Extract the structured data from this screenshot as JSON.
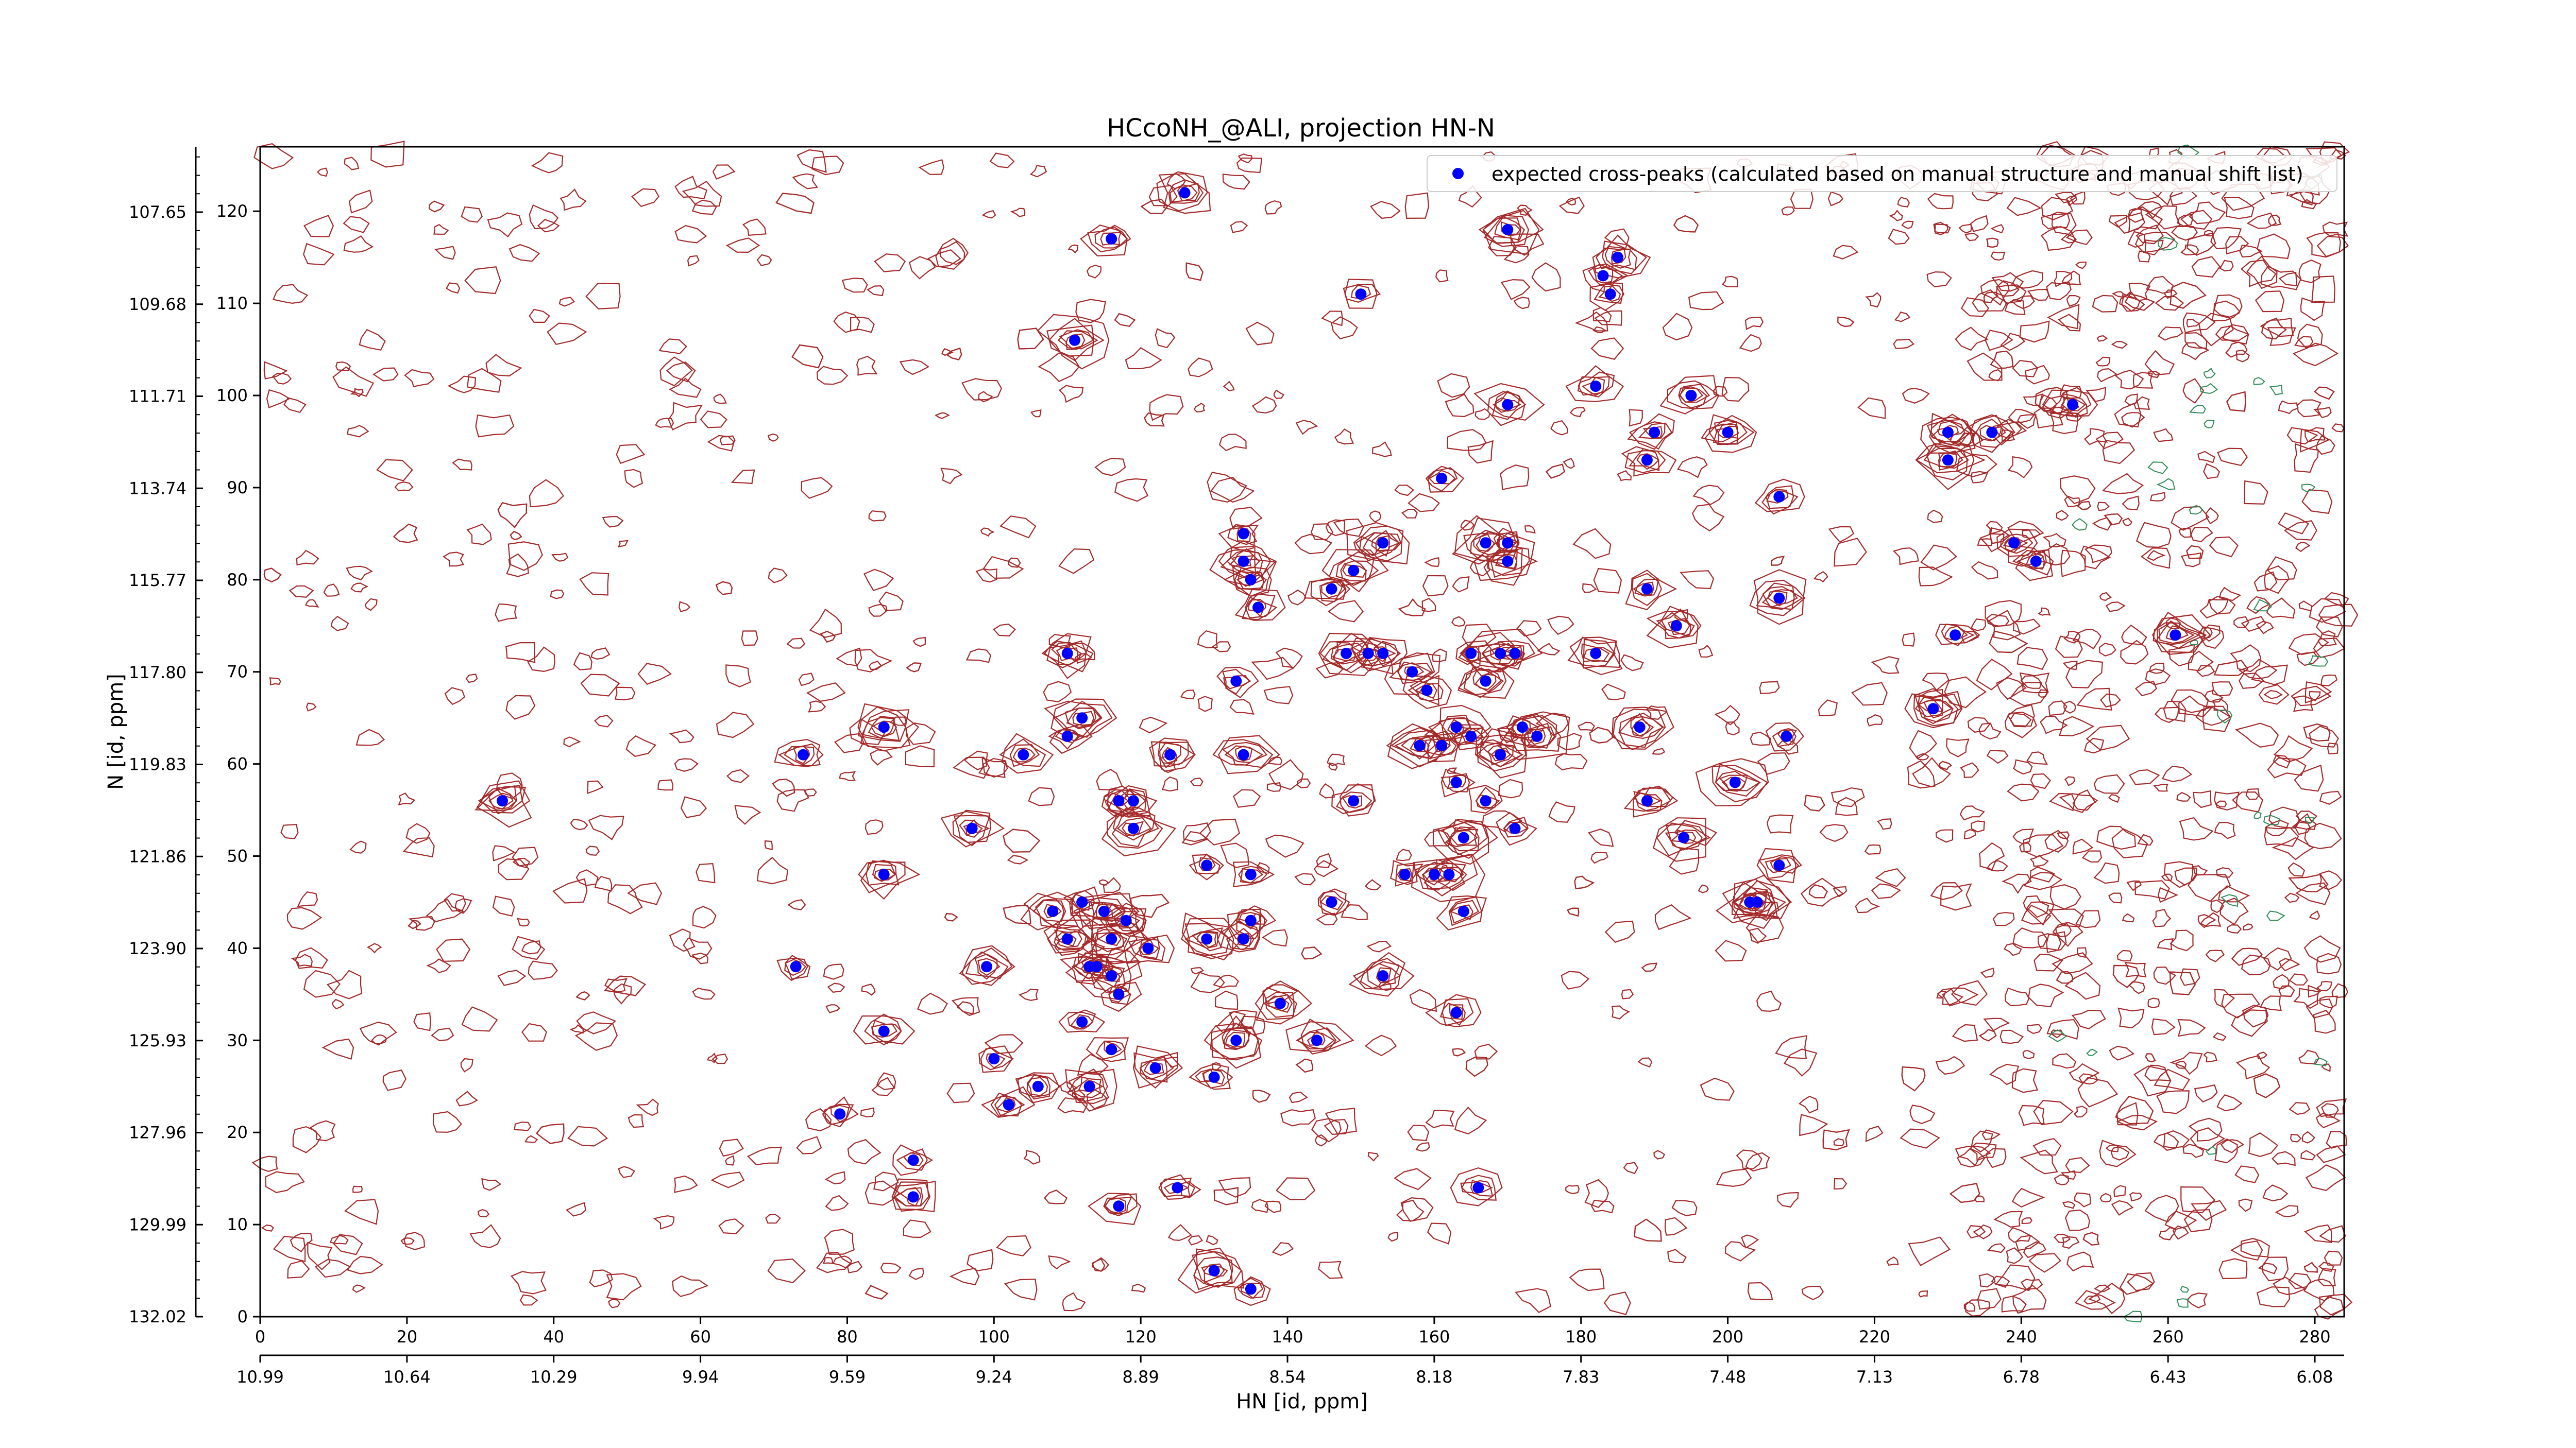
{
  "chart_data": {
    "type": "scatter",
    "title": "HCcoNH_@ALI, projection HN-N",
    "xlabel": "HN [id, ppm]",
    "ylabel": "N [id, ppm]",
    "xlim": [
      0,
      284
    ],
    "ylim": [
      0,
      127
    ],
    "x_ticks": [
      "0",
      "20",
      "40",
      "60",
      "80",
      "100",
      "120",
      "140",
      "160",
      "180",
      "200",
      "220",
      "240",
      "260",
      "280"
    ],
    "y_ticks": [
      "0",
      "10",
      "20",
      "30",
      "40",
      "50",
      "60",
      "70",
      "80",
      "90",
      "100",
      "110",
      "120"
    ],
    "x_ppm_ticks": [
      "10.99",
      "10.64",
      "10.29",
      "9.94",
      "9.59",
      "9.24",
      "8.89",
      "8.54",
      "8.18",
      "7.83",
      "7.48",
      "7.13",
      "6.78",
      "6.43",
      "6.08"
    ],
    "y_ppm_ticks": [
      "132.02",
      "129.99",
      "127.96",
      "125.93",
      "123.90",
      "121.86",
      "119.83",
      "117.80",
      "115.77",
      "113.74",
      "111.71",
      "109.68",
      "107.65"
    ],
    "legend": {
      "position": "top-right",
      "label": "expected cross-peaks (calculated based on manual structure and manual shift list)"
    },
    "colors": {
      "marker": "#0000ff",
      "contour": "#a52a2a",
      "negative_contour": "#2e8b57"
    },
    "series": [
      {
        "name": "expected cross-peaks (calculated based on manual structure and manual shift list)",
        "points": [
          [
            126,
            122
          ],
          [
            116,
            117
          ],
          [
            170,
            118
          ],
          [
            185,
            115
          ],
          [
            183,
            113
          ],
          [
            184,
            111
          ],
          [
            150,
            111
          ],
          [
            111,
            106
          ],
          [
            182,
            101
          ],
          [
            195,
            100
          ],
          [
            170,
            99
          ],
          [
            190,
            96
          ],
          [
            200,
            96
          ],
          [
            230,
            96
          ],
          [
            236,
            96
          ],
          [
            247,
            99
          ],
          [
            189,
            93
          ],
          [
            230,
            93
          ],
          [
            161,
            91
          ],
          [
            207,
            89
          ],
          [
            134,
            85
          ],
          [
            167,
            84
          ],
          [
            170,
            84
          ],
          [
            153,
            84
          ],
          [
            239,
            84
          ],
          [
            134,
            82
          ],
          [
            170,
            82
          ],
          [
            242,
            82
          ],
          [
            135,
            80
          ],
          [
            146,
            79
          ],
          [
            149,
            81
          ],
          [
            189,
            79
          ],
          [
            207,
            78
          ],
          [
            136,
            77
          ],
          [
            193,
            75
          ],
          [
            231,
            74
          ],
          [
            261,
            74
          ],
          [
            182,
            72
          ],
          [
            110,
            72
          ],
          [
            148,
            72
          ],
          [
            151,
            72
          ],
          [
            153,
            72
          ],
          [
            165,
            72
          ],
          [
            169,
            72
          ],
          [
            171,
            72
          ],
          [
            157,
            70
          ],
          [
            133,
            69
          ],
          [
            167,
            69
          ],
          [
            159,
            68
          ],
          [
            112,
            65
          ],
          [
            228,
            66
          ],
          [
            188,
            64
          ],
          [
            85,
            64
          ],
          [
            110,
            63
          ],
          [
            163,
            64
          ],
          [
            208,
            63
          ],
          [
            172,
            64
          ],
          [
            165,
            63
          ],
          [
            174,
            63
          ],
          [
            74,
            61
          ],
          [
            104,
            61
          ],
          [
            134,
            61
          ],
          [
            124,
            61
          ],
          [
            158,
            62
          ],
          [
            161,
            62
          ],
          [
            169,
            61
          ],
          [
            163,
            58
          ],
          [
            201,
            58
          ],
          [
            167,
            56
          ],
          [
            33,
            56
          ],
          [
            117,
            56
          ],
          [
            119,
            56
          ],
          [
            149,
            56
          ],
          [
            189,
            56
          ],
          [
            119,
            53
          ],
          [
            97,
            53
          ],
          [
            171,
            53
          ],
          [
            164,
            52
          ],
          [
            194,
            52
          ],
          [
            85,
            48
          ],
          [
            129,
            49
          ],
          [
            135,
            48
          ],
          [
            156,
            48
          ],
          [
            160,
            48
          ],
          [
            162,
            48
          ],
          [
            207,
            49
          ],
          [
            112,
            45
          ],
          [
            146,
            45
          ],
          [
            164,
            44
          ],
          [
            203,
            45
          ],
          [
            204,
            45
          ],
          [
            108,
            44
          ],
          [
            115,
            44
          ],
          [
            118,
            43
          ],
          [
            135,
            43
          ],
          [
            110,
            41
          ],
          [
            116,
            41
          ],
          [
            129,
            41
          ],
          [
            121,
            40
          ],
          [
            134,
            41
          ],
          [
            73,
            38
          ],
          [
            99,
            38
          ],
          [
            113,
            38
          ],
          [
            114,
            38
          ],
          [
            116,
            37
          ],
          [
            153,
            37
          ],
          [
            117,
            35
          ],
          [
            139,
            34
          ],
          [
            163,
            33
          ],
          [
            112,
            32
          ],
          [
            85,
            31
          ],
          [
            116,
            29
          ],
          [
            133,
            30
          ],
          [
            144,
            30
          ],
          [
            100,
            28
          ],
          [
            122,
            27
          ],
          [
            130,
            26
          ],
          [
            106,
            25
          ],
          [
            113,
            25
          ],
          [
            102,
            23
          ],
          [
            79,
            22
          ],
          [
            89,
            17
          ],
          [
            125,
            14
          ],
          [
            166,
            14
          ],
          [
            89,
            13
          ],
          [
            117,
            12
          ],
          [
            130,
            5
          ],
          [
            135,
            3
          ]
        ]
      }
    ],
    "grid": false
  }
}
